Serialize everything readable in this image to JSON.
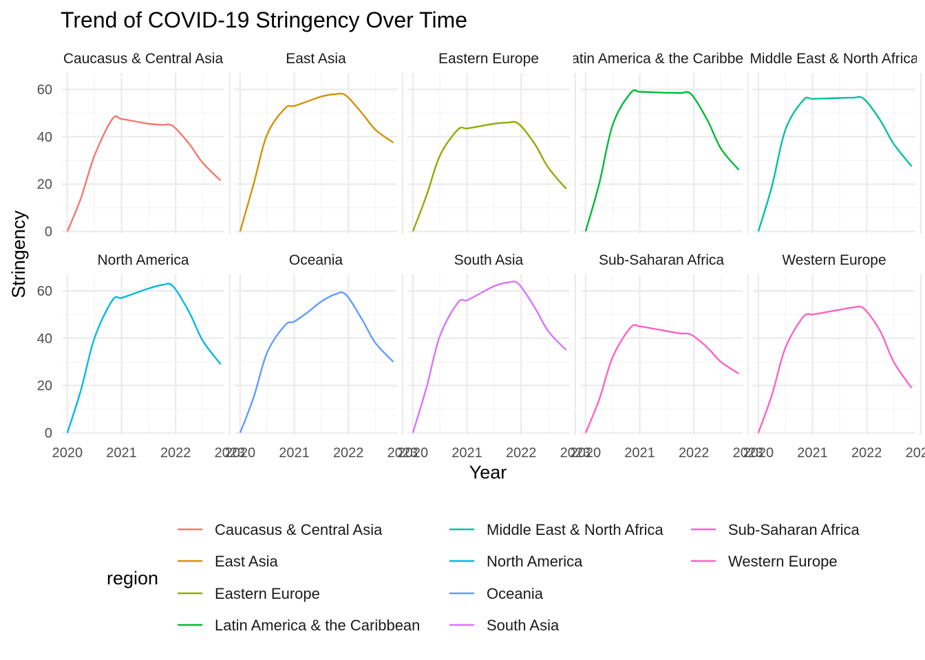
{
  "chart_data": {
    "type": "line",
    "title": "Trend of COVID-19 Stringency Over Time",
    "xlabel": "Year",
    "ylabel": "Stringency",
    "xlim": [
      2019.9,
      2022.9
    ],
    "ylim": [
      -1,
      67
    ],
    "x_ticks": [
      "2020",
      "2021",
      "2022",
      "2023"
    ],
    "y_ticks": [
      "0",
      "20",
      "40",
      "60"
    ],
    "grid": true,
    "facet_layout": "5 columns x 2 rows",
    "legend": {
      "title": "region",
      "position": "bottom"
    },
    "x": [
      2020.0,
      2020.25,
      2020.5,
      2020.83,
      2021.0,
      2021.25,
      2021.5,
      2021.75,
      2021.95,
      2022.25,
      2022.5,
      2022.83
    ],
    "series": [
      {
        "name": "Caucasus & Central Asia",
        "color": "#F8766D",
        "values": [
          0,
          14,
          32,
          47.5,
          47.5,
          46.5,
          45.5,
          45,
          44.5,
          37,
          29,
          21.5
        ]
      },
      {
        "name": "East Asia",
        "color": "#D39200",
        "values": [
          0,
          20,
          41,
          52,
          53,
          55,
          57,
          58,
          57.5,
          50,
          43,
          37.5
        ]
      },
      {
        "name": "Eastern Europe",
        "color": "#93AA00",
        "values": [
          0,
          15,
          32,
          43,
          43.5,
          44.5,
          45.5,
          46,
          45.5,
          37,
          27,
          18
        ]
      },
      {
        "name": "Latin America & the Caribbean",
        "color": "#00BA38",
        "values": [
          0,
          20,
          45,
          58.5,
          59,
          58.8,
          58.6,
          58.5,
          58,
          47,
          35,
          26
        ]
      },
      {
        "name": "Middle East & North Africa",
        "color": "#00C19F",
        "values": [
          0,
          19,
          43,
          55.5,
          56,
          56.2,
          56.4,
          56.5,
          56,
          47,
          37,
          27.5
        ]
      },
      {
        "name": "North America",
        "color": "#00B9E3",
        "values": [
          0,
          18,
          40,
          56,
          57,
          59,
          61,
          62.5,
          62,
          51,
          39,
          29
        ]
      },
      {
        "name": "Oceania",
        "color": "#619CFF",
        "values": [
          0,
          15,
          34,
          45.5,
          47,
          51,
          55.5,
          58.5,
          58.5,
          48,
          38,
          30
        ]
      },
      {
        "name": "South Asia",
        "color": "#DB72FB",
        "values": [
          0,
          19,
          41,
          55,
          56,
          59,
          62,
          63.5,
          63,
          53,
          43,
          35
        ]
      },
      {
        "name": "Sub-Saharan Africa",
        "color": "#FF61C3",
        "values": [
          0,
          14,
          32,
          44.5,
          45,
          44,
          43,
          42,
          41.5,
          36,
          30,
          25
        ]
      },
      {
        "name": "Western Europe",
        "color": "#FF61C3",
        "values": [
          0,
          16,
          36,
          49,
          50,
          51,
          52,
          53,
          52.5,
          43,
          30,
          19
        ]
      }
    ]
  }
}
